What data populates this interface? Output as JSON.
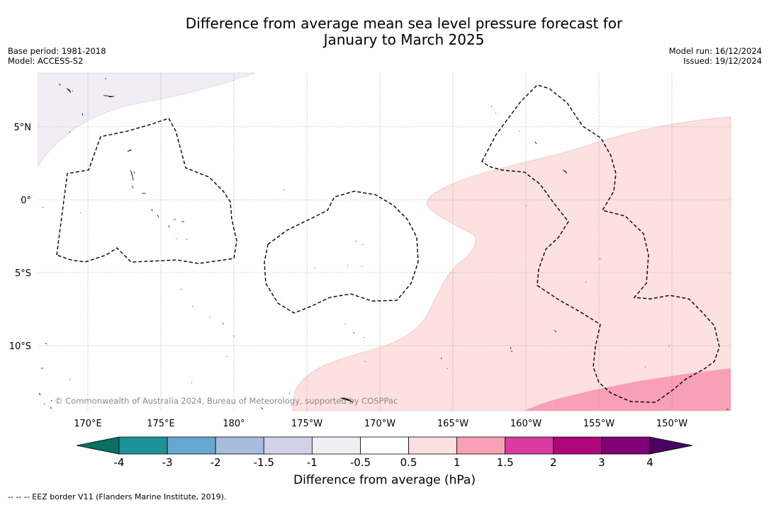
{
  "header": {
    "title_line1": "Difference from average mean sea level pressure forecast for",
    "title_line2": "January to March 2025",
    "base_period": "Base period: 1981-2018",
    "model": "Model: ACCESS-S2",
    "model_run": "Model run: 16/12/2024",
    "issued": "Issued: 19/12/2024"
  },
  "map": {
    "lon_labels": [
      "170°E",
      "175°E",
      "180°",
      "175°W",
      "170°W",
      "165°W",
      "160°W",
      "155°W",
      "150°W"
    ],
    "lat_labels": [
      "5°N",
      "0°",
      "5°S",
      "10°S"
    ],
    "copyright": "© Commonwealth of Australia 2024, Bureau of Meteorology, supported by COSPPac"
  },
  "colorbar": {
    "tick_labels": [
      "-4",
      "-3",
      "-2",
      "-1.5",
      "-1",
      "-0.5",
      "0.5",
      "1",
      "1.5",
      "2",
      "3",
      "4"
    ],
    "colors": [
      "#1e9196",
      "#66a8d2",
      "#a6bcdc",
      "#d0d2e8",
      "#f2ecf4",
      "#ffffff",
      "#fde0e0",
      "#f8a0b6",
      "#d93ba0",
      "#b0067c",
      "#800077"
    ],
    "under_color": "#0a6e60",
    "over_color": "#4a0060",
    "label": "Difference from average (hPa)"
  },
  "legend": {
    "footnote": "-- -- -- EEZ border V11 (Flanders Marine Institute, 2019)."
  }
}
